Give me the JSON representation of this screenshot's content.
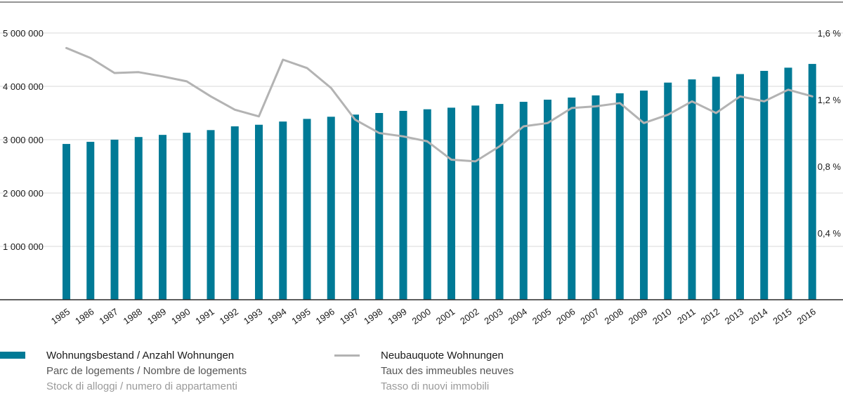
{
  "chart_data": {
    "type": "bar+line",
    "categories": [
      "1985",
      "1986",
      "1987",
      "1988",
      "1989",
      "1990",
      "1991",
      "1992",
      "1993",
      "1994",
      "1995",
      "1996",
      "1997",
      "1998",
      "1999",
      "2000",
      "2001",
      "2002",
      "2003",
      "2004",
      "2005",
      "2006",
      "2007",
      "2008",
      "2009",
      "2010",
      "2011",
      "2012",
      "2013",
      "2014",
      "2015",
      "2016"
    ],
    "series": [
      {
        "name": "Wohnungsbestand/Anzahl Wohnungen",
        "type": "bar",
        "axis": "left",
        "color": "#007a96",
        "values": [
          2920000,
          2960000,
          3000000,
          3050000,
          3090000,
          3130000,
          3180000,
          3250000,
          3280000,
          3340000,
          3390000,
          3430000,
          3470000,
          3500000,
          3540000,
          3570000,
          3600000,
          3640000,
          3670000,
          3710000,
          3750000,
          3790000,
          3830000,
          3870000,
          3920000,
          4070000,
          4130000,
          4180000,
          4230000,
          4290000,
          4350000,
          4420000
        ]
      },
      {
        "name": "Neubauquote Wohnungen",
        "type": "line",
        "axis": "right",
        "color": "#b3b3b3",
        "values": [
          1.51,
          1.45,
          1.36,
          1.365,
          1.34,
          1.31,
          1.22,
          1.14,
          1.1,
          1.44,
          1.39,
          1.27,
          1.08,
          1.0,
          0.98,
          0.95,
          0.84,
          0.83,
          0.92,
          1.04,
          1.06,
          1.15,
          1.16,
          1.18,
          1.06,
          1.11,
          1.19,
          1.12,
          1.22,
          1.19,
          1.26,
          1.22
        ]
      }
    ],
    "y_left": {
      "ylim": [
        0,
        5000000
      ],
      "ticks": [
        1000000,
        2000000,
        3000000,
        4000000,
        5000000
      ],
      "tick_labels": [
        "1 000 000",
        "2 000 000",
        "3 000 000",
        "4 000 000",
        "5 000 000"
      ]
    },
    "y_right": {
      "ylim": [
        0,
        1.6
      ],
      "ticks": [
        0.4,
        0.8,
        1.2,
        1.6
      ],
      "tick_labels": [
        "0,4 %",
        "0,8 %",
        "1,2 %",
        "1,6 %"
      ]
    },
    "grid": true,
    "legend_position": "bottom"
  },
  "legend": {
    "bar": {
      "de": "Wohnungsbestand / Anzahl Wohnungen",
      "fr": "Parc de logements / Nombre de logements",
      "it": "Stock di alloggi / numero di appartamenti"
    },
    "line": {
      "de": "Neubauquote Wohnungen",
      "fr": "Taux des immeubles neuves",
      "it": "Tasso di nuovi immobili"
    }
  }
}
